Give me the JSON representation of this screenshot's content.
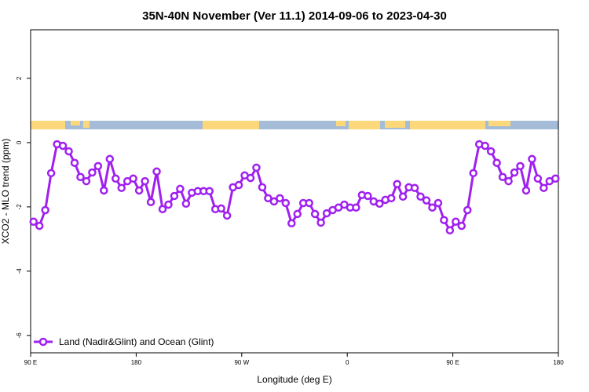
{
  "chart_data": {
    "type": "line",
    "title": "35N-40N November (Ver 11.1)   2014-09-06 to 2023-04-30",
    "xlabel": "Longitude (deg E)",
    "ylabel": "XCO2 - MLO trend (ppm)",
    "x": [
      92.5,
      97.5,
      102.5,
      107.5,
      112.5,
      117.5,
      122.5,
      127.5,
      132.5,
      137.5,
      142.5,
      147.5,
      152.5,
      157.5,
      162.5,
      167.5,
      172.5,
      177.5,
      182.5,
      187.5,
      192.5,
      197.5,
      202.5,
      207.5,
      212.5,
      217.5,
      222.5,
      227.5,
      232.5,
      237.5,
      242.5,
      247.5,
      252.5,
      257.5,
      262.5,
      267.5,
      272.5,
      277.5,
      282.5,
      287.5,
      292.5,
      297.5,
      302.5,
      307.5,
      312.5,
      317.5,
      322.5,
      327.5,
      332.5,
      337.5,
      342.5,
      347.5,
      352.5,
      357.5,
      362.5,
      367.5,
      372.5,
      377.5,
      382.5,
      387.5,
      392.5,
      397.5,
      402.5,
      407.5,
      412.5,
      417.5,
      422.5,
      427.5,
      432.5,
      437.5,
      442.5,
      447.5,
      452.5,
      457.5,
      462.5,
      467.5,
      472.5,
      477.5,
      482.5,
      487.5,
      492.5,
      497.5,
      502.5,
      507.5,
      512.5,
      517.5,
      522.5,
      527.5,
      532.5,
      537.5
    ],
    "series": [
      {
        "name": "Land (Nadir&Glint) and Ocean (Glint)",
        "color": "#a020f0",
        "values": [
          -2.46,
          -2.59,
          -2.1,
          -0.95,
          -0.05,
          -0.1,
          -0.27,
          -0.63,
          -1.07,
          -1.2,
          -0.93,
          -0.73,
          -1.49,
          -0.51,
          -1.12,
          -1.41,
          -1.2,
          -1.12,
          -1.49,
          -1.2,
          -1.85,
          -0.9,
          -2.07,
          -1.93,
          -1.66,
          -1.44,
          -1.9,
          -1.56,
          -1.51,
          -1.51,
          -1.51,
          -2.07,
          -2.05,
          -2.27,
          -1.39,
          -1.32,
          -1.02,
          -1.1,
          -0.78,
          -1.39,
          -1.73,
          -1.83,
          -1.73,
          -1.88,
          -2.51,
          -2.22,
          -1.88,
          -1.88,
          -2.22,
          -2.49,
          -2.2,
          -2.1,
          -2.02,
          -1.93,
          -2.02,
          -2.02,
          -1.63,
          -1.66,
          -1.83,
          -1.9,
          -1.78,
          -1.73,
          -1.29,
          -1.68,
          -1.39,
          -1.41,
          -1.68,
          -1.8,
          -2.02,
          -1.88,
          -2.41,
          -2.73,
          -2.46,
          -2.59,
          -2.1,
          -0.95,
          -0.05,
          -0.1,
          -0.27,
          -0.63,
          -1.07,
          -1.2,
          -0.93,
          -0.73,
          -1.49,
          -0.51,
          -1.12,
          -1.41,
          -1.2,
          -1.12
        ]
      }
    ],
    "xlim": [
      90,
      540
    ],
    "xticks": [
      {
        "value": 90,
        "label": "90 E"
      },
      180,
      {
        "value": 270,
        "label": "90 W"
      },
      {
        "value": 360,
        "label": "0"
      },
      {
        "value": 450,
        "label": "90 E"
      },
      {
        "value": 540,
        "label": "180"
      }
    ],
    "ylim": [
      -6.54,
      3.51
    ],
    "yticks": [
      -6,
      -4,
      -2,
      0,
      2
    ],
    "legend": "bottom-left"
  }
}
